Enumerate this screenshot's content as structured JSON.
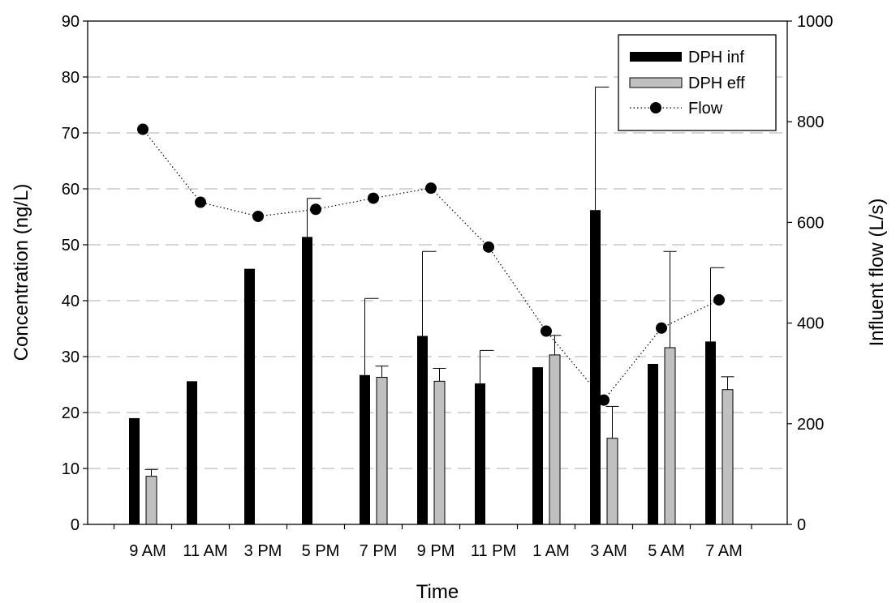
{
  "chart_data": {
    "type": "bar",
    "categories": [
      "9 AM",
      "11 AM",
      "3 PM",
      "5 PM",
      "7 PM",
      "9 PM",
      "11 PM",
      "1 AM",
      "3 AM",
      "5 AM",
      "7 AM"
    ],
    "series": [
      {
        "name": "DPH inf",
        "type": "bar",
        "axis": "left",
        "color": "#000000",
        "values": [
          19.0,
          25.6,
          45.7,
          51.4,
          26.7,
          33.7,
          25.2,
          28.1,
          56.2,
          28.7,
          32.7
        ],
        "error_upper": [
          null,
          null,
          null,
          58.3,
          40.4,
          48.8,
          31.1,
          null,
          78.2,
          null,
          45.9
        ]
      },
      {
        "name": "DPH eff",
        "type": "bar",
        "axis": "left",
        "color": "#c0c0c0",
        "values": [
          8.6,
          null,
          null,
          null,
          26.3,
          25.6,
          null,
          30.3,
          15.4,
          31.6,
          24.1
        ],
        "error_upper": [
          9.8,
          null,
          null,
          null,
          28.3,
          27.9,
          null,
          33.8,
          21.1,
          48.8,
          26.4
        ]
      },
      {
        "name": "Flow",
        "type": "line",
        "axis": "right",
        "color": "#000000",
        "values": [
          785,
          640,
          612,
          626,
          648,
          668,
          551,
          384,
          247,
          390,
          446
        ]
      }
    ],
    "xlabel": "Time",
    "ylabel": "Concentration (ng/L)",
    "y2label": "Influent flow (L/s)",
    "ylim": [
      0,
      90
    ],
    "y2lim": [
      0,
      1000
    ],
    "yticks": [
      0,
      10,
      20,
      30,
      40,
      50,
      60,
      70,
      80,
      90
    ],
    "y2ticks": [
      0,
      200,
      400,
      600,
      800,
      1000
    ],
    "grid_lines": [
      10,
      20,
      30,
      40,
      50,
      60,
      70,
      80
    ],
    "legend_position": "top-right",
    "legend": [
      "DPH inf",
      "DPH eff",
      "Flow"
    ]
  }
}
